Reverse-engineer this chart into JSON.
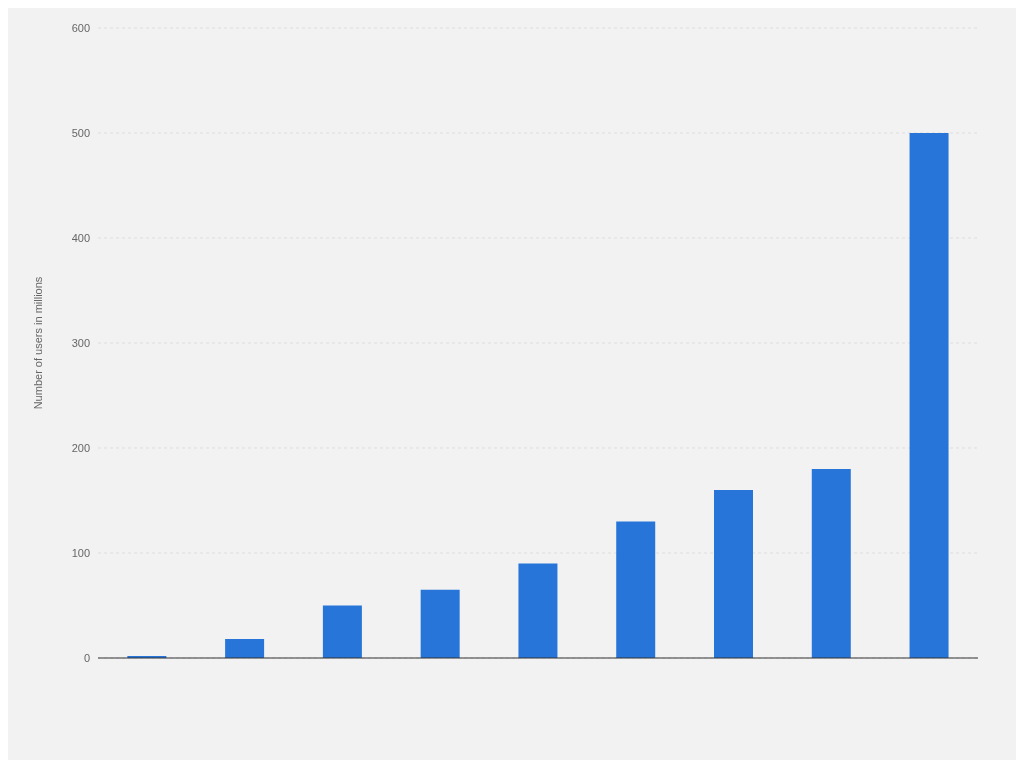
{
  "chart_data": {
    "type": "bar",
    "ylabel": "Number of users in millions",
    "categories": [
      null,
      null,
      null,
      null,
      null,
      null,
      null,
      null,
      null
    ],
    "values": [
      2,
      18,
      50,
      65,
      90,
      130,
      160,
      180,
      500
    ],
    "color": "#2775d9",
    "ylim": [
      0,
      600
    ],
    "yticks": [
      0,
      100,
      200,
      300,
      400,
      500,
      600
    ],
    "grid": "y",
    "legend": false
  }
}
